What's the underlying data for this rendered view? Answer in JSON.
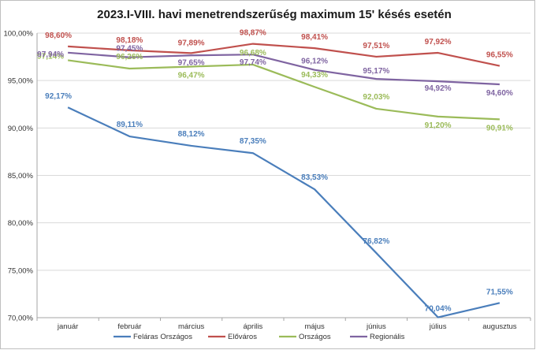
{
  "chart_data": {
    "type": "line",
    "title": "2023.I-VIII. havi menetrendszerűség  maximum  15' késés esetén",
    "categories": [
      "január",
      "február",
      "március",
      "április",
      "május",
      "június",
      "július",
      "augusztus"
    ],
    "ylim": [
      70,
      100
    ],
    "yticks": [
      70,
      75,
      80,
      85,
      90,
      95,
      100
    ],
    "ytick_labels": [
      "70,00%",
      "75,00%",
      "80,00%",
      "85,00%",
      "90,00%",
      "95,00%",
      "100,00%"
    ],
    "grid": "horizontal",
    "legend_position": "bottom",
    "series": [
      {
        "name": "Feláras Országos",
        "color": "#4a7ebb",
        "values": [
          92.17,
          89.11,
          88.12,
          87.35,
          83.53,
          76.82,
          70.04,
          71.55
        ],
        "labels": [
          "92,17%",
          "89,11%",
          "88,12%",
          "87,35%",
          "83,53%",
          "76,82%",
          "70,04%",
          "71,55%"
        ]
      },
      {
        "name": "Előváros",
        "color": "#c0504d",
        "values": [
          98.6,
          98.18,
          97.89,
          98.87,
          98.41,
          97.51,
          97.92,
          96.55
        ],
        "labels": [
          "98,60%",
          "98,18%",
          "97,89%",
          "98,87%",
          "98,41%",
          "97,51%",
          "97,92%",
          "96,55%"
        ]
      },
      {
        "name": "Országos",
        "color": "#9bbb59",
        "values": [
          97.14,
          96.26,
          96.47,
          96.68,
          94.33,
          92.03,
          91.2,
          90.91
        ],
        "labels": [
          "97,14%",
          "96,26%",
          "96,47%",
          "96,68%",
          "94,33%",
          "92,03%",
          "91,20%",
          "90,91%"
        ]
      },
      {
        "name": "Regionális",
        "color": "#7f64a1",
        "values": [
          97.94,
          97.45,
          97.65,
          97.74,
          96.12,
          95.17,
          94.92,
          94.6
        ],
        "labels": [
          "97,94%",
          "97,45%",
          "97,65%",
          "97,74%",
          "96,12%",
          "95,17%",
          "94,92%",
          "94,60%"
        ]
      }
    ]
  }
}
